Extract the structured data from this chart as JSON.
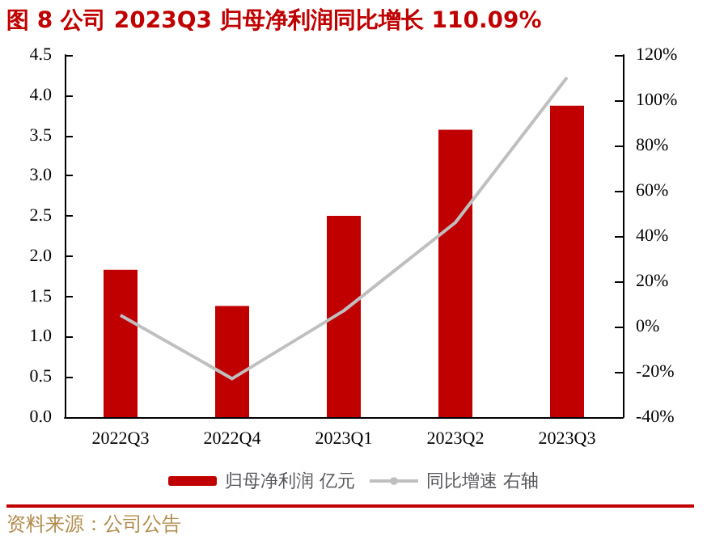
{
  "chart_data": {
    "type": "bar",
    "title": "图 8 公司 2023Q3 归母净利润同比增长 110.09%",
    "categories": [
      "2022Q3",
      "2022Q4",
      "2023Q1",
      "2023Q2",
      "2023Q3"
    ],
    "series": [
      {
        "name": "归母净利润 亿元",
        "color": "#c00000",
        "values": [
          1.83,
          1.38,
          2.5,
          3.57,
          3.87
        ]
      },
      {
        "name": "同比增速 右轴",
        "type": "line",
        "axis": "y2",
        "color": "#bfbfbf",
        "values": [
          5,
          -23,
          7,
          46,
          110.09
        ]
      }
    ],
    "ylim": [
      0,
      4.5
    ],
    "yticks": [
      {
        "value": 0,
        "label": "0.0"
      },
      0.5,
      {
        "value": 1,
        "label": "1.0"
      },
      1.5,
      {
        "value": 2,
        "label": "2.0"
      },
      2.5,
      {
        "value": 3,
        "label": "3.0"
      },
      3.5,
      {
        "value": 4,
        "label": "4.0"
      },
      4.5
    ],
    "y2lim": [
      -40,
      120
    ],
    "y2ticks": [
      {
        "value": -40,
        "label": "-40%"
      },
      {
        "value": -20,
        "label": "-20%"
      },
      {
        "value": 0,
        "label": "0%"
      },
      {
        "value": 20,
        "label": "20%"
      },
      {
        "value": 40,
        "label": "40%"
      },
      {
        "value": 60,
        "label": "60%"
      },
      {
        "value": 80,
        "label": "80%"
      },
      {
        "value": 100,
        "label": "100%"
      },
      {
        "value": 120,
        "label": "120%"
      }
    ],
    "grid": false,
    "legend": "bottom",
    "marker": "none",
    "annotations": [
      "资料来源：公司公告"
    ]
  }
}
